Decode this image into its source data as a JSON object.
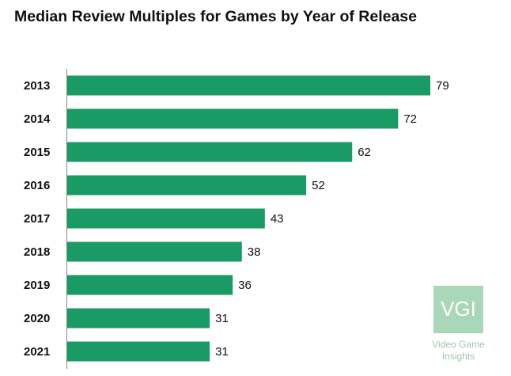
{
  "chart_data": {
    "type": "bar",
    "orientation": "horizontal",
    "title": "Median Review Multiples for Games by Year of Release",
    "categories": [
      "2013",
      "2014",
      "2015",
      "2016",
      "2017",
      "2018",
      "2019",
      "2020",
      "2021"
    ],
    "values": [
      79,
      72,
      62,
      52,
      43,
      38,
      36,
      31,
      31
    ],
    "color": "#1a9a64"
  },
  "logo": {
    "mark": "VGI",
    "lines": [
      "Video Game",
      "Insights"
    ]
  }
}
